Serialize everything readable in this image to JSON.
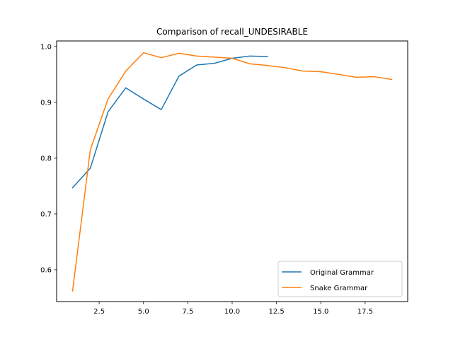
{
  "chart_data": {
    "type": "line",
    "title": "Comparison of recall_UNDESIRABLE",
    "xlabel": "",
    "ylabel": "",
    "xlim": [
      0.1,
      19.9
    ],
    "ylim": [
      0.543,
      1.01
    ],
    "x_ticks": [
      2.5,
      5.0,
      7.5,
      10.0,
      12.5,
      15.0,
      17.5
    ],
    "x_tick_labels": [
      "2.5",
      "5.0",
      "7.5",
      "10.0",
      "12.5",
      "15.0",
      "17.5"
    ],
    "y_ticks": [
      0.6,
      0.7,
      0.8,
      0.9,
      1.0
    ],
    "y_tick_labels": [
      "0.6",
      "0.7",
      "0.8",
      "0.9",
      "1.0"
    ],
    "grid": false,
    "legend_position": "lower-right",
    "series": [
      {
        "name": "Original Grammar",
        "color": "#1f77b4",
        "x": [
          1,
          2,
          3,
          4,
          5,
          6,
          7,
          8,
          9,
          10,
          11,
          12
        ],
        "y": [
          0.747,
          0.782,
          0.883,
          0.926,
          0.906,
          0.887,
          0.947,
          0.967,
          0.97,
          0.979,
          0.983,
          0.982
        ]
      },
      {
        "name": "Snake Grammar",
        "color": "#ff7f0e",
        "x": [
          1,
          2,
          3,
          4,
          5,
          6,
          7,
          8,
          9,
          10,
          11,
          12,
          13,
          14,
          15,
          16,
          17,
          18,
          19
        ],
        "y": [
          0.562,
          0.815,
          0.906,
          0.956,
          0.989,
          0.98,
          0.988,
          0.983,
          0.981,
          0.979,
          0.969,
          0.966,
          0.962,
          0.956,
          0.955,
          0.95,
          0.945,
          0.946,
          0.941
        ]
      }
    ]
  }
}
